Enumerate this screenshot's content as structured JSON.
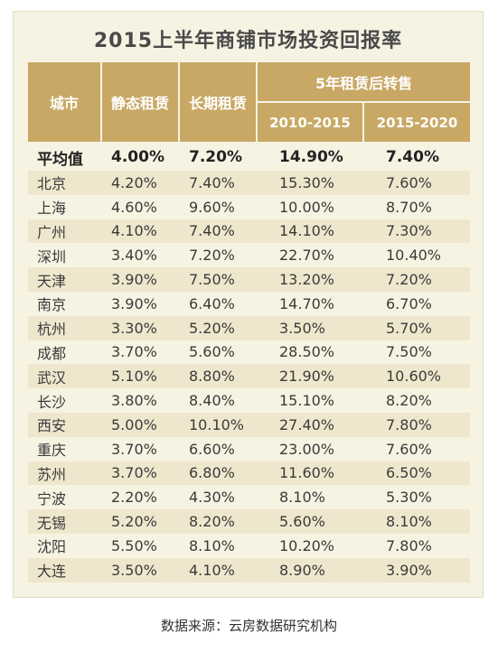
{
  "title": "2015上半年商铺市场投资回报率",
  "headers": {
    "city": "城市",
    "static_rent": "静态租赁",
    "long_rent": "长期租赁",
    "resale_group": "5年租赁后转售",
    "period_a": "2010-2015",
    "period_b": "2015-2020"
  },
  "rows": [
    {
      "city": "平均值",
      "static": "4.00%",
      "long": "7.20%",
      "a": "14.90%",
      "b": "7.40%"
    },
    {
      "city": "北京",
      "static": "4.20%",
      "long": "7.40%",
      "a": "15.30%",
      "b": "7.60%"
    },
    {
      "city": "上海",
      "static": "4.60%",
      "long": "9.60%",
      "a": "10.00%",
      "b": "8.70%"
    },
    {
      "city": "广州",
      "static": "4.10%",
      "long": "7.40%",
      "a": "14.10%",
      "b": "7.30%"
    },
    {
      "city": "深圳",
      "static": "3.40%",
      "long": "7.20%",
      "a": "22.70%",
      "b": "10.40%"
    },
    {
      "city": "天津",
      "static": "3.90%",
      "long": "7.50%",
      "a": "13.20%",
      "b": "7.20%"
    },
    {
      "city": "南京",
      "static": "3.90%",
      "long": "6.40%",
      "a": "14.70%",
      "b": "6.70%"
    },
    {
      "city": "杭州",
      "static": "3.30%",
      "long": "5.20%",
      "a": "3.50%",
      "b": "5.70%"
    },
    {
      "city": "成都",
      "static": "3.70%",
      "long": "5.60%",
      "a": "28.50%",
      "b": "7.50%"
    },
    {
      "city": "武汉",
      "static": "5.10%",
      "long": "8.80%",
      "a": "21.90%",
      "b": "10.60%"
    },
    {
      "city": "长沙",
      "static": "3.80%",
      "long": "8.40%",
      "a": "15.10%",
      "b": "8.20%"
    },
    {
      "city": "西安",
      "static": "5.00%",
      "long": "10.10%",
      "a": "27.40%",
      "b": "7.80%"
    },
    {
      "city": "重庆",
      "static": "3.70%",
      "long": "6.60%",
      "a": "23.00%",
      "b": "7.60%"
    },
    {
      "city": "苏州",
      "static": "3.70%",
      "long": "6.80%",
      "a": "11.60%",
      "b": "6.50%"
    },
    {
      "city": "宁波",
      "static": "2.20%",
      "long": "4.30%",
      "a": "8.10%",
      "b": "5.30%"
    },
    {
      "city": "无锡",
      "static": "5.20%",
      "long": "8.20%",
      "a": "5.60%",
      "b": "8.10%"
    },
    {
      "city": "沈阳",
      "static": "5.50%",
      "long": "8.10%",
      "a": "10.20%",
      "b": "7.80%"
    },
    {
      "city": "大连",
      "static": "3.50%",
      "long": "4.10%",
      "a": "8.90%",
      "b": "3.90%"
    }
  ],
  "source": "数据来源：云房数据研究机构",
  "colors": {
    "header_bg": "#c8a864",
    "card_bg": "#f7f3e2",
    "stripe_bg": "#efe7cd"
  }
}
